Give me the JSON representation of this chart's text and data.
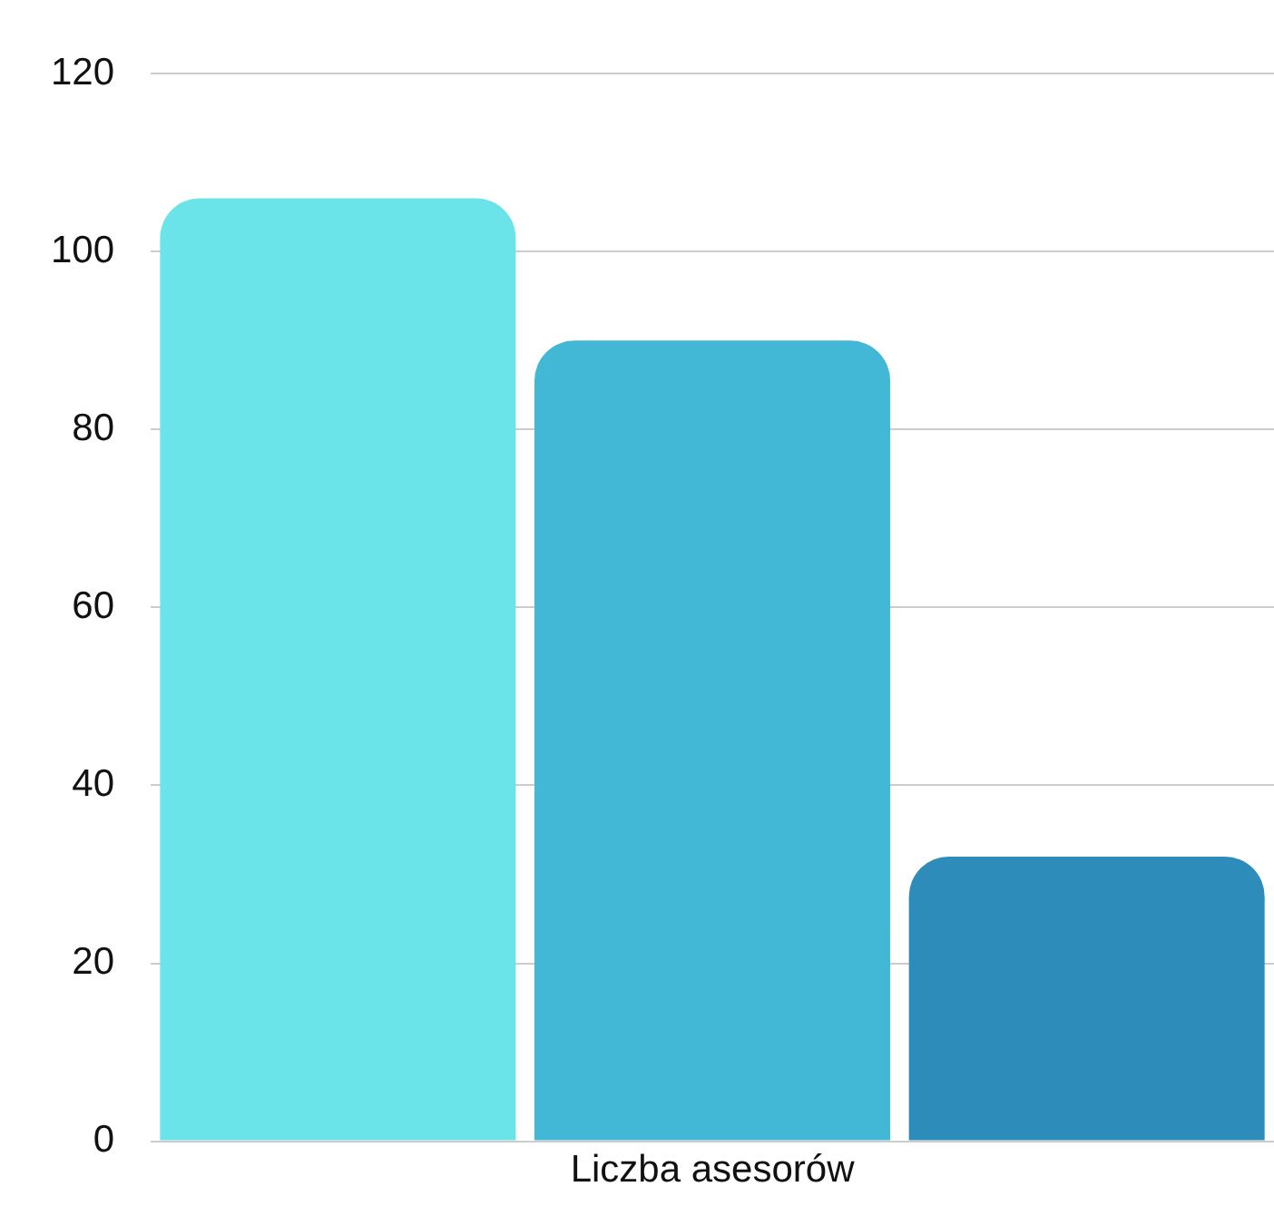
{
  "chart_data": {
    "type": "bar",
    "categories": [
      "Liczba asesorów"
    ],
    "series": [
      {
        "color": "#6ae4e8",
        "values": [
          106
        ]
      },
      {
        "color": "#42b7d6",
        "values": [
          90
        ]
      },
      {
        "color": "#2e8cba",
        "values": [
          32
        ]
      }
    ],
    "ylim": [
      0,
      120
    ],
    "yticks": [
      0,
      20,
      40,
      60,
      80,
      100,
      120
    ],
    "grid": "y",
    "legend": false
  }
}
